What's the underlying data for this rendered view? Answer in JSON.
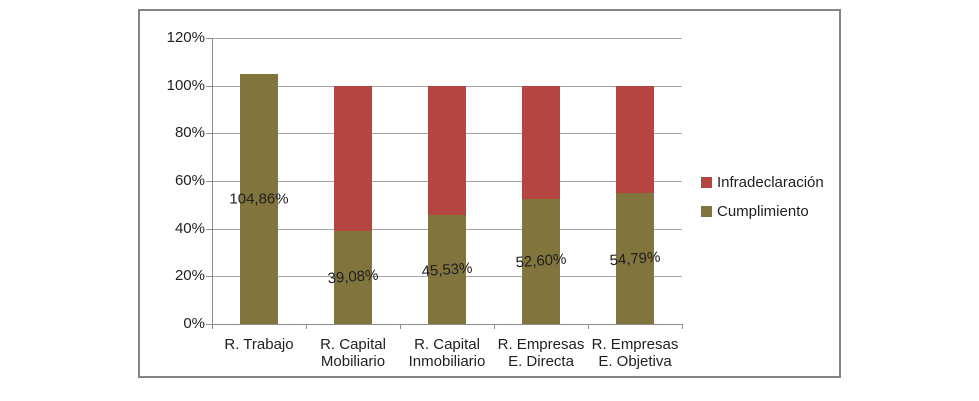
{
  "chart_data": {
    "type": "bar",
    "stacked": true,
    "grid": true,
    "categories": [
      [
        "R. Trabajo"
      ],
      [
        "R. Capital",
        "Mobiliario"
      ],
      [
        "R. Capital",
        "Inmobiliario"
      ],
      [
        "R. Empresas",
        "E. Directa"
      ],
      [
        "R. Empresas",
        "E. Objetiva"
      ]
    ],
    "series": [
      {
        "name": "Cumplimiento",
        "color": "#81753D",
        "values": [
          104.86,
          39.08,
          45.53,
          52.6,
          54.79
        ]
      },
      {
        "name": "Infradeclaración",
        "color": "#B64441",
        "values": [
          0,
          60.92,
          54.47,
          47.4,
          45.21
        ]
      }
    ],
    "data_labels": [
      "104,86%",
      "39,08%",
      "45,53%",
      "52,60%",
      "54,79%"
    ],
    "y_axis": {
      "min": 0,
      "max": 120,
      "ticks": [
        {
          "value": 120,
          "label": "120%"
        },
        {
          "value": 100,
          "label": "100%"
        },
        {
          "value": 80,
          "label": "80%"
        },
        {
          "value": 60,
          "label": "60%"
        },
        {
          "value": 40,
          "label": "40%"
        },
        {
          "value": 20,
          "label": "20%"
        },
        {
          "value": 0,
          "label": "0%"
        }
      ]
    },
    "legend": {
      "position": "right",
      "entries": [
        {
          "label": "Infradeclaración",
          "series": "Infradeclaración"
        },
        {
          "label": "Cumplimiento",
          "series": "Cumplimiento"
        }
      ]
    },
    "frame_border_color": "#848484",
    "gridline_color": "#a6a6a6",
    "axis_color": "#8c8c8c",
    "text_color": "#1f1f1f"
  }
}
